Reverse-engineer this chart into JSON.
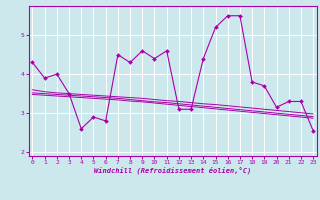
{
  "xlabel": "Windchill (Refroidissement éolien,°C)",
  "bg_color": "#cce8ec",
  "line_color": "#aa00aa",
  "grid_color": "#ffffff",
  "series0": [
    4.3,
    3.9,
    4.0,
    3.5,
    2.6,
    2.9,
    2.8,
    4.5,
    4.3,
    4.6,
    4.4,
    4.6,
    3.1,
    3.1,
    4.4,
    5.2,
    5.5,
    5.5,
    3.8,
    3.7,
    3.15,
    3.3,
    3.3,
    2.55
  ],
  "series1": [
    3.6,
    3.55,
    3.52,
    3.5,
    3.48,
    3.46,
    3.44,
    3.42,
    3.4,
    3.38,
    3.35,
    3.32,
    3.3,
    3.27,
    3.24,
    3.22,
    3.19,
    3.16,
    3.13,
    3.1,
    3.07,
    3.04,
    3.01,
    2.98
  ],
  "series2": [
    3.52,
    3.5,
    3.48,
    3.46,
    3.44,
    3.42,
    3.4,
    3.38,
    3.35,
    3.32,
    3.29,
    3.27,
    3.24,
    3.21,
    3.18,
    3.15,
    3.12,
    3.09,
    3.06,
    3.03,
    3.0,
    2.97,
    2.94,
    2.91
  ],
  "series3": [
    3.48,
    3.46,
    3.44,
    3.42,
    3.4,
    3.38,
    3.36,
    3.34,
    3.31,
    3.29,
    3.26,
    3.23,
    3.2,
    3.17,
    3.14,
    3.11,
    3.08,
    3.05,
    3.02,
    2.99,
    2.96,
    2.93,
    2.9,
    2.87
  ],
  "x": [
    0,
    1,
    2,
    3,
    4,
    5,
    6,
    7,
    8,
    9,
    10,
    11,
    12,
    13,
    14,
    15,
    16,
    17,
    18,
    19,
    20,
    21,
    22,
    23
  ],
  "ylim": [
    1.9,
    5.75
  ],
  "yticks": [
    2,
    3,
    4,
    5
  ],
  "xticks": [
    0,
    1,
    2,
    3,
    4,
    5,
    6,
    7,
    8,
    9,
    10,
    11,
    12,
    13,
    14,
    15,
    16,
    17,
    18,
    19,
    20,
    21,
    22,
    23
  ]
}
